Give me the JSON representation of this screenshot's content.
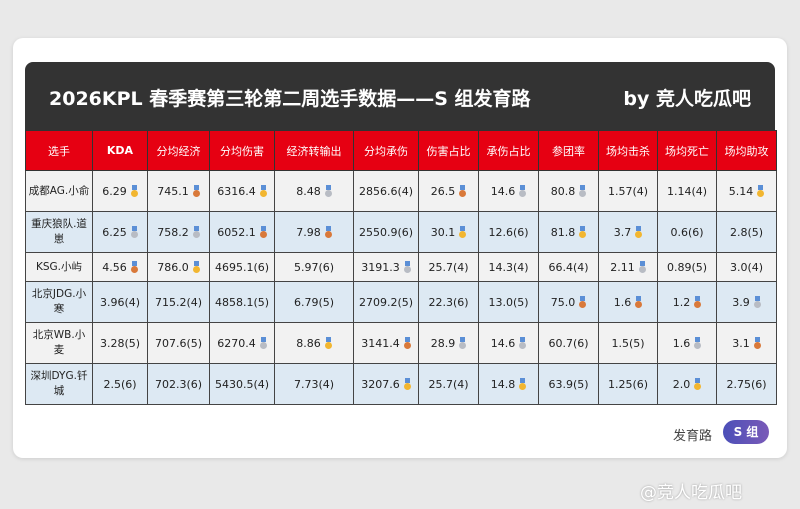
{
  "title": "2026KPL 春季赛第三轮第二周选手数据——S 组发育路",
  "byline": "by 竞人吃瓜吧",
  "medal_colors": {
    "gold": "#f2b630",
    "silver": "#b8bcc4",
    "bronze": "#d9793a"
  },
  "columns": [
    "选手",
    "KDA",
    "分均经济",
    "分均伤害",
    "经济转输出",
    "分均承伤",
    "伤害占比",
    "承伤占比",
    "参团率",
    "场均击杀",
    "场均死亡",
    "场均助攻"
  ],
  "rows": [
    {
      "player": "成都AG.小俞",
      "cells": [
        {
          "v": "6.29",
          "m": "gold"
        },
        {
          "v": "745.1",
          "m": "bronze"
        },
        {
          "v": "6316.4",
          "m": "gold"
        },
        {
          "v": "8.48",
          "m": "silver"
        },
        {
          "v": "2856.6(4)"
        },
        {
          "v": "26.5",
          "m": "bronze"
        },
        {
          "v": "14.6",
          "m": "silver"
        },
        {
          "v": "80.8",
          "m": "silver"
        },
        {
          "v": "1.57(4)"
        },
        {
          "v": "1.14(4)"
        },
        {
          "v": "5.14",
          "m": "gold"
        }
      ]
    },
    {
      "player": "重庆狼队.道崽",
      "cells": [
        {
          "v": "6.25",
          "m": "silver"
        },
        {
          "v": "758.2",
          "m": "silver"
        },
        {
          "v": "6052.1",
          "m": "bronze"
        },
        {
          "v": "7.98",
          "m": "bronze"
        },
        {
          "v": "2550.9(6)"
        },
        {
          "v": "30.1",
          "m": "gold"
        },
        {
          "v": "12.6(6)"
        },
        {
          "v": "81.8",
          "m": "gold"
        },
        {
          "v": "3.7",
          "m": "gold"
        },
        {
          "v": "0.6(6)"
        },
        {
          "v": "2.8(5)"
        }
      ]
    },
    {
      "player": "KSG.小屿",
      "cells": [
        {
          "v": "4.56",
          "m": "bronze"
        },
        {
          "v": "786.0",
          "m": "gold"
        },
        {
          "v": "4695.1(6)"
        },
        {
          "v": "5.97(6)"
        },
        {
          "v": "3191.3",
          "m": "silver"
        },
        {
          "v": "25.7(4)"
        },
        {
          "v": "14.3(4)"
        },
        {
          "v": "66.4(4)"
        },
        {
          "v": "2.11",
          "m": "silver"
        },
        {
          "v": "0.89(5)"
        },
        {
          "v": "3.0(4)"
        }
      ]
    },
    {
      "player": "北京JDG.小寒",
      "cells": [
        {
          "v": "3.96(4)"
        },
        {
          "v": "715.2(4)"
        },
        {
          "v": "4858.1(5)"
        },
        {
          "v": "6.79(5)"
        },
        {
          "v": "2709.2(5)"
        },
        {
          "v": "22.3(6)"
        },
        {
          "v": "13.0(5)"
        },
        {
          "v": "75.0",
          "m": "bronze"
        },
        {
          "v": "1.6",
          "m": "bronze"
        },
        {
          "v": "1.2",
          "m": "bronze"
        },
        {
          "v": "3.9",
          "m": "silver"
        }
      ]
    },
    {
      "player": "北京WB.小麦",
      "cells": [
        {
          "v": "3.28(5)"
        },
        {
          "v": "707.6(5)"
        },
        {
          "v": "6270.4",
          "m": "silver"
        },
        {
          "v": "8.86",
          "m": "gold"
        },
        {
          "v": "3141.4",
          "m": "bronze"
        },
        {
          "v": "28.9",
          "m": "silver"
        },
        {
          "v": "14.6",
          "m": "silver"
        },
        {
          "v": "60.7(6)"
        },
        {
          "v": "1.5(5)"
        },
        {
          "v": "1.6",
          "m": "silver"
        },
        {
          "v": "3.1",
          "m": "bronze"
        }
      ]
    },
    {
      "player": "深圳DYG.钎城",
      "cells": [
        {
          "v": "2.5(6)"
        },
        {
          "v": "702.3(6)"
        },
        {
          "v": "5430.5(4)"
        },
        {
          "v": "7.73(4)"
        },
        {
          "v": "3207.6",
          "m": "gold"
        },
        {
          "v": "25.7(4)"
        },
        {
          "v": "14.8",
          "m": "gold"
        },
        {
          "v": "63.9(5)"
        },
        {
          "v": "1.25(6)"
        },
        {
          "v": "2.0",
          "m": "gold"
        },
        {
          "v": "2.75(6)"
        }
      ]
    }
  ],
  "footer": {
    "label": "发育路",
    "group": "S 组"
  },
  "watermark": "@竞人吃瓜吧"
}
